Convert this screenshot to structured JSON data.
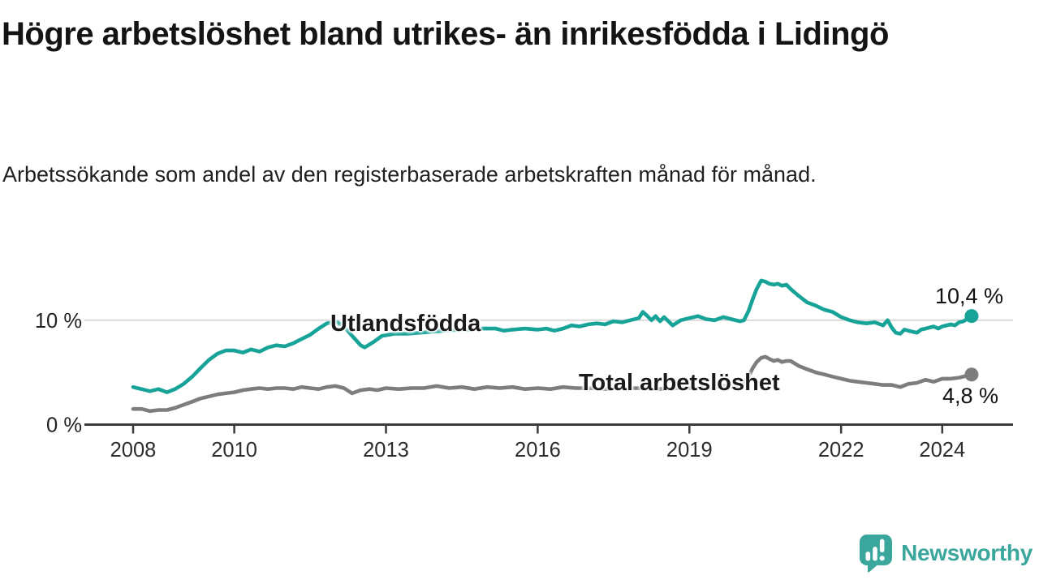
{
  "header": {
    "title": "Högre arbetslöshet bland utrikes- än inrikesfödda i Lidingö",
    "subtitle": "Arbetssökande som andel av den registerbaserade arbetskraften månad för månad."
  },
  "footer": {
    "brand": "Newsworthy"
  },
  "colors": {
    "teal": "#17a398",
    "gray": "#7d7d7d",
    "axis": "#3b3b3b",
    "grid": "#d9d9d9",
    "text_dark": "#141414",
    "logo_teal": "#3ba79c"
  },
  "chart_data": {
    "type": "line",
    "title": "Högre arbetslöshet bland utrikes- än inrikesfödda i Lidingö",
    "subtitle": "Arbetssökande som andel av den registerbaserade arbetskraften månad för månad.",
    "unit": "%",
    "x_range": [
      2008,
      2024.58
    ],
    "ylim": [
      0,
      14.2
    ],
    "grid": "single horizontal gridline at 10 %",
    "legend": "inline series labels",
    "x_ticks": [
      {
        "year": 2008,
        "label": "2008"
      },
      {
        "year": 2010,
        "label": "2010"
      },
      {
        "year": 2013,
        "label": "2013"
      },
      {
        "year": 2016,
        "label": "2016"
      },
      {
        "year": 2019,
        "label": "2019"
      },
      {
        "year": 2022,
        "label": "2022"
      },
      {
        "year": 2024,
        "label": "2024"
      }
    ],
    "y_ticks": [
      {
        "value": 0,
        "label": "0 %"
      },
      {
        "value": 10,
        "label": "10 %"
      }
    ],
    "series": [
      {
        "name": "Utlandsfödda",
        "slug": "utlandsfodda",
        "color": "#17a398",
        "end_value": 10.4,
        "end_label": "10,4 %",
        "points": [
          [
            2008.0,
            3.6
          ],
          [
            2008.17,
            3.4
          ],
          [
            2008.33,
            3.2
          ],
          [
            2008.5,
            3.4
          ],
          [
            2008.67,
            3.1
          ],
          [
            2008.83,
            3.4
          ],
          [
            2009.0,
            3.9
          ],
          [
            2009.17,
            4.6
          ],
          [
            2009.33,
            5.4
          ],
          [
            2009.5,
            6.2
          ],
          [
            2009.67,
            6.8
          ],
          [
            2009.83,
            7.1
          ],
          [
            2010.0,
            7.1
          ],
          [
            2010.17,
            6.9
          ],
          [
            2010.33,
            7.2
          ],
          [
            2010.5,
            7.0
          ],
          [
            2010.67,
            7.4
          ],
          [
            2010.83,
            7.6
          ],
          [
            2011.0,
            7.5
          ],
          [
            2011.17,
            7.8
          ],
          [
            2011.33,
            8.2
          ],
          [
            2011.5,
            8.6
          ],
          [
            2011.67,
            9.2
          ],
          [
            2011.83,
            9.7
          ],
          [
            2012.0,
            9.9
          ],
          [
            2012.17,
            9.4
          ],
          [
            2012.33,
            8.5
          ],
          [
            2012.5,
            7.6
          ],
          [
            2012.58,
            7.4
          ],
          [
            2012.75,
            7.9
          ],
          [
            2012.92,
            8.5
          ],
          [
            2013.17,
            8.7
          ],
          [
            2013.42,
            8.7
          ],
          [
            2013.67,
            8.8
          ],
          [
            2013.92,
            8.9
          ],
          [
            2014.17,
            9.0
          ],
          [
            2014.42,
            9.1
          ],
          [
            2014.67,
            9.1
          ],
          [
            2014.92,
            9.2
          ],
          [
            2015.17,
            9.2
          ],
          [
            2015.33,
            9.0
          ],
          [
            2015.5,
            9.1
          ],
          [
            2015.75,
            9.2
          ],
          [
            2016.0,
            9.1
          ],
          [
            2016.17,
            9.2
          ],
          [
            2016.33,
            9.0
          ],
          [
            2016.5,
            9.2
          ],
          [
            2016.67,
            9.5
          ],
          [
            2016.83,
            9.4
          ],
          [
            2017.0,
            9.6
          ],
          [
            2017.17,
            9.7
          ],
          [
            2017.33,
            9.6
          ],
          [
            2017.5,
            9.9
          ],
          [
            2017.67,
            9.8
          ],
          [
            2017.83,
            10.0
          ],
          [
            2018.0,
            10.2
          ],
          [
            2018.08,
            10.8
          ],
          [
            2018.17,
            10.4
          ],
          [
            2018.25,
            10.0
          ],
          [
            2018.33,
            10.4
          ],
          [
            2018.42,
            9.9
          ],
          [
            2018.5,
            10.3
          ],
          [
            2018.67,
            9.5
          ],
          [
            2018.83,
            10.0
          ],
          [
            2019.0,
            10.2
          ],
          [
            2019.17,
            10.4
          ],
          [
            2019.33,
            10.1
          ],
          [
            2019.5,
            10.0
          ],
          [
            2019.67,
            10.3
          ],
          [
            2019.83,
            10.1
          ],
          [
            2020.0,
            9.9
          ],
          [
            2020.08,
            10.0
          ],
          [
            2020.17,
            10.9
          ],
          [
            2020.25,
            12.0
          ],
          [
            2020.33,
            13.0
          ],
          [
            2020.42,
            13.8
          ],
          [
            2020.5,
            13.7
          ],
          [
            2020.58,
            13.5
          ],
          [
            2020.67,
            13.4
          ],
          [
            2020.75,
            13.5
          ],
          [
            2020.83,
            13.3
          ],
          [
            2020.92,
            13.4
          ],
          [
            2021.0,
            13.0
          ],
          [
            2021.17,
            12.3
          ],
          [
            2021.33,
            11.7
          ],
          [
            2021.5,
            11.4
          ],
          [
            2021.67,
            11.0
          ],
          [
            2021.83,
            10.8
          ],
          [
            2022.0,
            10.3
          ],
          [
            2022.17,
            10.0
          ],
          [
            2022.33,
            9.8
          ],
          [
            2022.5,
            9.7
          ],
          [
            2022.67,
            9.8
          ],
          [
            2022.83,
            9.5
          ],
          [
            2022.92,
            10.0
          ],
          [
            2023.0,
            9.3
          ],
          [
            2023.08,
            8.8
          ],
          [
            2023.17,
            8.7
          ],
          [
            2023.25,
            9.1
          ],
          [
            2023.33,
            9.0
          ],
          [
            2023.5,
            8.8
          ],
          [
            2023.58,
            9.1
          ],
          [
            2023.67,
            9.2
          ],
          [
            2023.83,
            9.4
          ],
          [
            2023.92,
            9.2
          ],
          [
            2024.0,
            9.4
          ],
          [
            2024.17,
            9.6
          ],
          [
            2024.25,
            9.5
          ],
          [
            2024.33,
            9.8
          ],
          [
            2024.42,
            9.9
          ],
          [
            2024.58,
            10.4
          ]
        ]
      },
      {
        "name": "Total arbetslöshet",
        "slug": "total-arbetsloshet",
        "color": "#7d7d7d",
        "end_value": 4.8,
        "end_label": "4,8 %",
        "points": [
          [
            2008.0,
            1.5
          ],
          [
            2008.17,
            1.5
          ],
          [
            2008.33,
            1.3
          ],
          [
            2008.5,
            1.4
          ],
          [
            2008.67,
            1.4
          ],
          [
            2008.83,
            1.6
          ],
          [
            2009.0,
            1.9
          ],
          [
            2009.17,
            2.2
          ],
          [
            2009.33,
            2.5
          ],
          [
            2009.5,
            2.7
          ],
          [
            2009.67,
            2.9
          ],
          [
            2009.83,
            3.0
          ],
          [
            2010.0,
            3.1
          ],
          [
            2010.17,
            3.3
          ],
          [
            2010.33,
            3.4
          ],
          [
            2010.5,
            3.5
          ],
          [
            2010.67,
            3.4
          ],
          [
            2010.83,
            3.5
          ],
          [
            2011.0,
            3.5
          ],
          [
            2011.17,
            3.4
          ],
          [
            2011.33,
            3.6
          ],
          [
            2011.5,
            3.5
          ],
          [
            2011.67,
            3.4
          ],
          [
            2011.83,
            3.6
          ],
          [
            2012.0,
            3.7
          ],
          [
            2012.17,
            3.5
          ],
          [
            2012.33,
            3.0
          ],
          [
            2012.5,
            3.3
          ],
          [
            2012.67,
            3.4
          ],
          [
            2012.83,
            3.3
          ],
          [
            2013.0,
            3.5
          ],
          [
            2013.25,
            3.4
          ],
          [
            2013.5,
            3.5
          ],
          [
            2013.75,
            3.5
          ],
          [
            2014.0,
            3.7
          ],
          [
            2014.25,
            3.5
          ],
          [
            2014.5,
            3.6
          ],
          [
            2014.75,
            3.4
          ],
          [
            2015.0,
            3.6
          ],
          [
            2015.25,
            3.5
          ],
          [
            2015.5,
            3.6
          ],
          [
            2015.75,
            3.4
          ],
          [
            2016.0,
            3.5
          ],
          [
            2016.25,
            3.4
          ],
          [
            2016.5,
            3.6
          ],
          [
            2016.75,
            3.5
          ],
          [
            2017.0,
            3.5
          ],
          [
            2017.33,
            3.4
          ],
          [
            2017.67,
            3.5
          ],
          [
            2018.0,
            3.5
          ],
          [
            2018.33,
            3.4
          ],
          [
            2018.67,
            3.5
          ],
          [
            2019.0,
            3.5
          ],
          [
            2019.33,
            3.5
          ],
          [
            2019.67,
            3.7
          ],
          [
            2019.83,
            3.6
          ],
          [
            2020.0,
            3.7
          ],
          [
            2020.08,
            3.9
          ],
          [
            2020.17,
            4.6
          ],
          [
            2020.25,
            5.4
          ],
          [
            2020.33,
            6.0
          ],
          [
            2020.42,
            6.4
          ],
          [
            2020.5,
            6.5
          ],
          [
            2020.58,
            6.3
          ],
          [
            2020.67,
            6.1
          ],
          [
            2020.75,
            6.2
          ],
          [
            2020.83,
            6.0
          ],
          [
            2020.92,
            6.1
          ],
          [
            2021.0,
            6.1
          ],
          [
            2021.17,
            5.6
          ],
          [
            2021.33,
            5.3
          ],
          [
            2021.5,
            5.0
          ],
          [
            2021.67,
            4.8
          ],
          [
            2021.83,
            4.6
          ],
          [
            2022.0,
            4.4
          ],
          [
            2022.17,
            4.2
          ],
          [
            2022.33,
            4.1
          ],
          [
            2022.5,
            4.0
          ],
          [
            2022.67,
            3.9
          ],
          [
            2022.83,
            3.8
          ],
          [
            2023.0,
            3.8
          ],
          [
            2023.17,
            3.6
          ],
          [
            2023.33,
            3.9
          ],
          [
            2023.5,
            4.0
          ],
          [
            2023.67,
            4.3
          ],
          [
            2023.83,
            4.1
          ],
          [
            2024.0,
            4.4
          ],
          [
            2024.17,
            4.4
          ],
          [
            2024.33,
            4.5
          ],
          [
            2024.5,
            4.7
          ],
          [
            2024.58,
            4.8
          ]
        ]
      }
    ]
  }
}
